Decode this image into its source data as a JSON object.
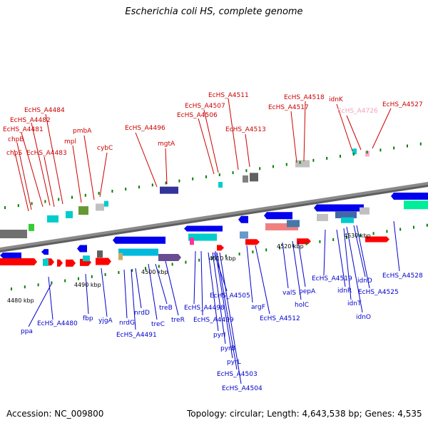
{
  "title": "Escherichia coli HS, complete genome",
  "footer": {
    "accession": "Accession: NC_009800",
    "summary": "Topology: circular; Length: 4,643,538 bp; Genes: 4,535"
  },
  "colors": {
    "label_top": "#cc0000",
    "label_top_pale": "#f4a0b8",
    "label_bottom": "#0000cc",
    "forward_gene": "#ff0000",
    "reverse_gene": "#0000ee",
    "backbone": "#808080",
    "tick_dot": "#008000"
  },
  "ticks": [
    "4480 kbp",
    "4490 kbp",
    "4500 kbp",
    "4510 kbp",
    "4520 kbp",
    "4530 kbp"
  ],
  "labels_top": [
    "chpS",
    "chpB",
    "EcHS_A4481",
    "EcHS_A4482",
    "EcHS_A4484",
    "EcHS_A4483",
    "mpl",
    "pmbA",
    "cybC",
    "EcHS_A4496",
    "mgtA",
    "EcHS_A4506",
    "EcHS_A4507",
    "EcHS_A4511",
    "EcHS_A4513",
    "EcHS_A4517",
    "EcHS_A4518",
    "idnK",
    "EcHS_A4726",
    "EcHS_A4527"
  ],
  "labels_bottom": [
    "ppa",
    "EcHS_A4480",
    "fbp",
    "yjgA",
    "nrdG",
    "EcHS_A4491",
    "nrdD",
    "treC",
    "treB",
    "treR",
    "EcHS_A4498",
    "EcHS_A4499",
    "pyrI",
    "pyrB",
    "pyrL",
    "EcHS_A4503",
    "EcHS_A4504",
    "EcHS_A4505",
    "argF",
    "EcHS_A4512",
    "valS",
    "holC",
    "pepA",
    "EcHS_A4519",
    "idnR",
    "idnT",
    "idnO",
    "idnD",
    "EcHS_A4525",
    "EcHS_A4528"
  ]
}
